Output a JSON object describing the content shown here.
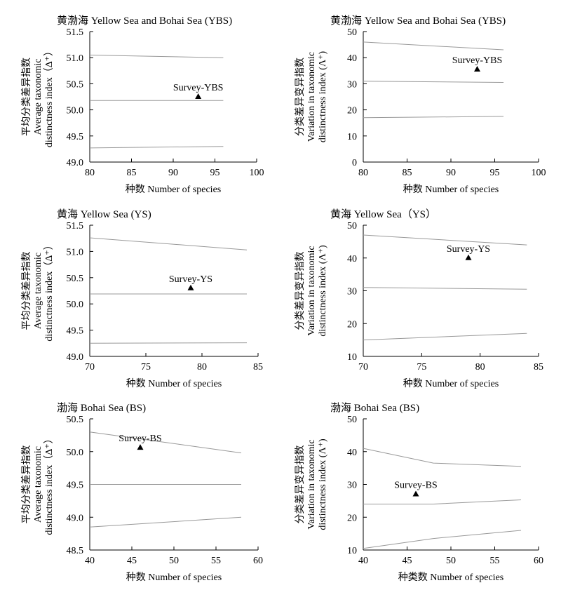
{
  "chart_data": [
    {
      "type": "line",
      "title": "黄渤海  Yellow Sea and Bohai Sea (YBS)",
      "xlabel": "种数  Number of species",
      "ylabel": [
        "平均分类差异指数",
        "Average taxonomic",
        "distinctness index（Δ⁺）"
      ],
      "xlim": [
        80,
        100
      ],
      "ylim": [
        49.0,
        51.5
      ],
      "xticks": [
        "80",
        "85",
        "90",
        "95",
        "100"
      ],
      "yticks": [
        "49.0",
        "49.5",
        "50.0",
        "50.5",
        "51.0",
        "51.5"
      ],
      "series": [
        {
          "values": [
            [
              80,
              51.05
            ],
            [
              96,
              51.0
            ]
          ]
        },
        {
          "values": [
            [
              80,
              50.18
            ],
            [
              96,
              50.18
            ]
          ]
        },
        {
          "values": [
            [
              80,
              49.27
            ],
            [
              96,
              49.3
            ]
          ]
        }
      ],
      "points": [
        {
          "label": "Survey-YBS",
          "x": 93,
          "y": 50.25
        }
      ],
      "grid": false
    },
    {
      "type": "line",
      "title": "黄渤海  Yellow Sea and Bohai Sea (YBS)",
      "xlabel": "种数  Number of species",
      "ylabel": [
        "分类差异变异指数",
        "Variation in taxonomic",
        "distinctness index (Λ⁺)"
      ],
      "xlim": [
        80,
        100
      ],
      "ylim": [
        0,
        50
      ],
      "xticks": [
        "80",
        "85",
        "90",
        "95",
        "100"
      ],
      "yticks": [
        "0",
        "10",
        "20",
        "30",
        "40",
        "50"
      ],
      "series": [
        {
          "values": [
            [
              80,
              46
            ],
            [
              96,
              43
            ]
          ]
        },
        {
          "values": [
            [
              80,
              31
            ],
            [
              96,
              30.5
            ]
          ]
        },
        {
          "values": [
            [
              80,
              17
            ],
            [
              96,
              17.5
            ]
          ]
        }
      ],
      "points": [
        {
          "label": "Survey-YBS",
          "x": 93,
          "y": 35.5
        }
      ],
      "grid": false
    },
    {
      "type": "line",
      "title": "黄海  Yellow Sea (YS)",
      "xlabel": "种数  Number of species",
      "ylabel": [
        "平均分类差异指数",
        "Average taxonomic",
        "distinctness index（Δ⁺）"
      ],
      "xlim": [
        70,
        85
      ],
      "ylim": [
        49.0,
        51.5
      ],
      "xticks": [
        "70",
        "75",
        "80",
        "85"
      ],
      "yticks": [
        "49.0",
        "49.5",
        "50.0",
        "50.5",
        "51.0",
        "51.5"
      ],
      "series": [
        {
          "values": [
            [
              70,
              51.26
            ],
            [
              84,
              51.03
            ]
          ]
        },
        {
          "values": [
            [
              70,
              50.19
            ],
            [
              84,
              50.19
            ]
          ]
        },
        {
          "values": [
            [
              70,
              49.25
            ],
            [
              84,
              49.26
            ]
          ]
        }
      ],
      "points": [
        {
          "label": "Survey-YS",
          "x": 79,
          "y": 50.3
        }
      ],
      "grid": false
    },
    {
      "type": "line",
      "title": "黄海  Yellow Sea（YS）",
      "xlabel": "种数  Number of species",
      "ylabel": [
        "分类差异变异指数",
        "Variation in taxonomic",
        "distinctness index (Λ⁺)"
      ],
      "xlim": [
        70,
        85
      ],
      "ylim": [
        10,
        50
      ],
      "xticks": [
        "70",
        "75",
        "80",
        "85"
      ],
      "yticks": [
        "10",
        "20",
        "30",
        "40",
        "50"
      ],
      "series": [
        {
          "values": [
            [
              70,
              47
            ],
            [
              84,
              44
            ]
          ]
        },
        {
          "values": [
            [
              70,
              31
            ],
            [
              84,
              30.5
            ]
          ]
        },
        {
          "values": [
            [
              70,
              15
            ],
            [
              84,
              17
            ]
          ]
        }
      ],
      "points": [
        {
          "label": "Survey-YS",
          "x": 79,
          "y": 40
        }
      ],
      "grid": false
    },
    {
      "type": "line",
      "title": "渤海  Bohai Sea (BS)",
      "xlabel": "种数  Number of species",
      "ylabel": [
        "平均分类差异指数",
        "Average taxonomic",
        "distinctness index（Δ⁺）"
      ],
      "xlim": [
        40,
        60
      ],
      "ylim": [
        48.5,
        50.5
      ],
      "xticks": [
        "40",
        "45",
        "50",
        "55",
        "60"
      ],
      "yticks": [
        "48.5",
        "49.0",
        "49.5",
        "50.0",
        "50.5"
      ],
      "series": [
        {
          "values": [
            [
              40,
              50.3
            ],
            [
              58,
              49.98
            ]
          ]
        },
        {
          "values": [
            [
              40,
              49.5
            ],
            [
              58,
              49.5
            ]
          ]
        },
        {
          "values": [
            [
              40,
              48.85
            ],
            [
              58,
              49.0
            ]
          ]
        }
      ],
      "points": [
        {
          "label": "Survey-BS",
          "x": 46,
          "y": 50.06
        }
      ],
      "grid": false
    },
    {
      "type": "line",
      "title": "渤海  Bohai Sea (BS)",
      "xlabel": "种类数  Number of species",
      "ylabel": [
        "分类差异变异指数",
        "Variation in taxonomic",
        "distinctness index (Λ⁺)"
      ],
      "xlim": [
        40,
        60
      ],
      "ylim": [
        10,
        50
      ],
      "xticks": [
        "40",
        "45",
        "50",
        "55",
        "60"
      ],
      "yticks": [
        "10",
        "20",
        "30",
        "40",
        "50"
      ],
      "series": [
        {
          "values": [
            [
              40,
              41
            ],
            [
              48,
              36.5
            ],
            [
              58,
              35.5
            ]
          ]
        },
        {
          "values": [
            [
              40,
              24
            ],
            [
              48,
              24
            ],
            [
              58,
              25.3
            ]
          ]
        },
        {
          "values": [
            [
              40,
              10.5
            ],
            [
              48,
              13.5
            ],
            [
              58,
              16
            ]
          ]
        }
      ],
      "points": [
        {
          "label": "Survey-BS",
          "x": 46,
          "y": 27
        }
      ],
      "grid": false
    }
  ],
  "colors": {
    "line": "#999999",
    "axis": "#000000",
    "marker": "#000000",
    "text": "#000000"
  }
}
